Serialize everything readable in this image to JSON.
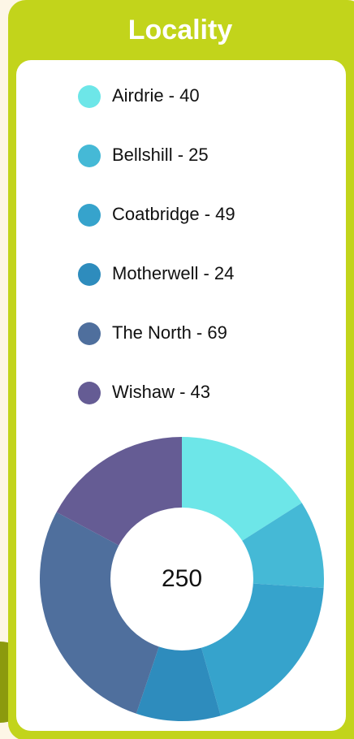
{
  "chart_data": {
    "type": "donut",
    "title": "Locality",
    "categories": [
      "Airdrie - 40",
      "Bellshill - 25",
      "Coatbridge - 49",
      "Motherwell - 24",
      "The North - 69",
      "Wishaw - 43"
    ],
    "values": [
      40,
      25,
      49,
      24,
      69,
      43
    ],
    "colors": [
      "#6de6e8",
      "#45b9d6",
      "#36a3cc",
      "#2e8cbd",
      "#4f6f9d",
      "#655c94"
    ],
    "total": 250
  }
}
